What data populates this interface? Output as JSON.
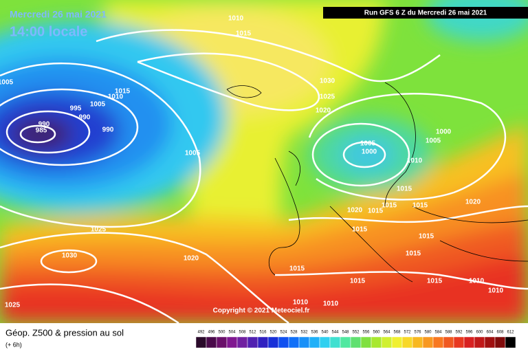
{
  "header": {
    "date": "Mercredi 26 mai 2021",
    "time": "14:00 locale",
    "run": "Run GFS 6 Z du Mercredi 26 mai 2021"
  },
  "isobar_labels": [
    "1010",
    "1015",
    "1005",
    "1015",
    "1010",
    "1005",
    "995",
    "990",
    "985",
    "990",
    "990",
    "1005",
    "1030",
    "1025",
    "1020",
    "1000",
    "1005",
    "1005",
    "1000",
    "1010",
    "1015",
    "1020",
    "1020",
    "1015",
    "1015",
    "1015",
    "1015",
    "1015",
    "1025",
    "1030",
    "1020",
    "1015",
    "1015",
    "1015",
    "1015",
    "1010",
    "1010",
    "1025",
    "1010",
    "1010"
  ],
  "copyright": "Copyright © 2021 Meteociel.fr",
  "footer": {
    "title": "Géop. Z500 & pression au sol",
    "subtitle": "(+ 6h)",
    "scale": [
      "492",
      "496",
      "500",
      "504",
      "508",
      "512",
      "516",
      "520",
      "524",
      "528",
      "532",
      "536",
      "540",
      "544",
      "548",
      "552",
      "556",
      "560",
      "564",
      "568",
      "572",
      "576",
      "580",
      "584",
      "588",
      "592",
      "596",
      "600",
      "604",
      "608",
      "612"
    ]
  }
}
